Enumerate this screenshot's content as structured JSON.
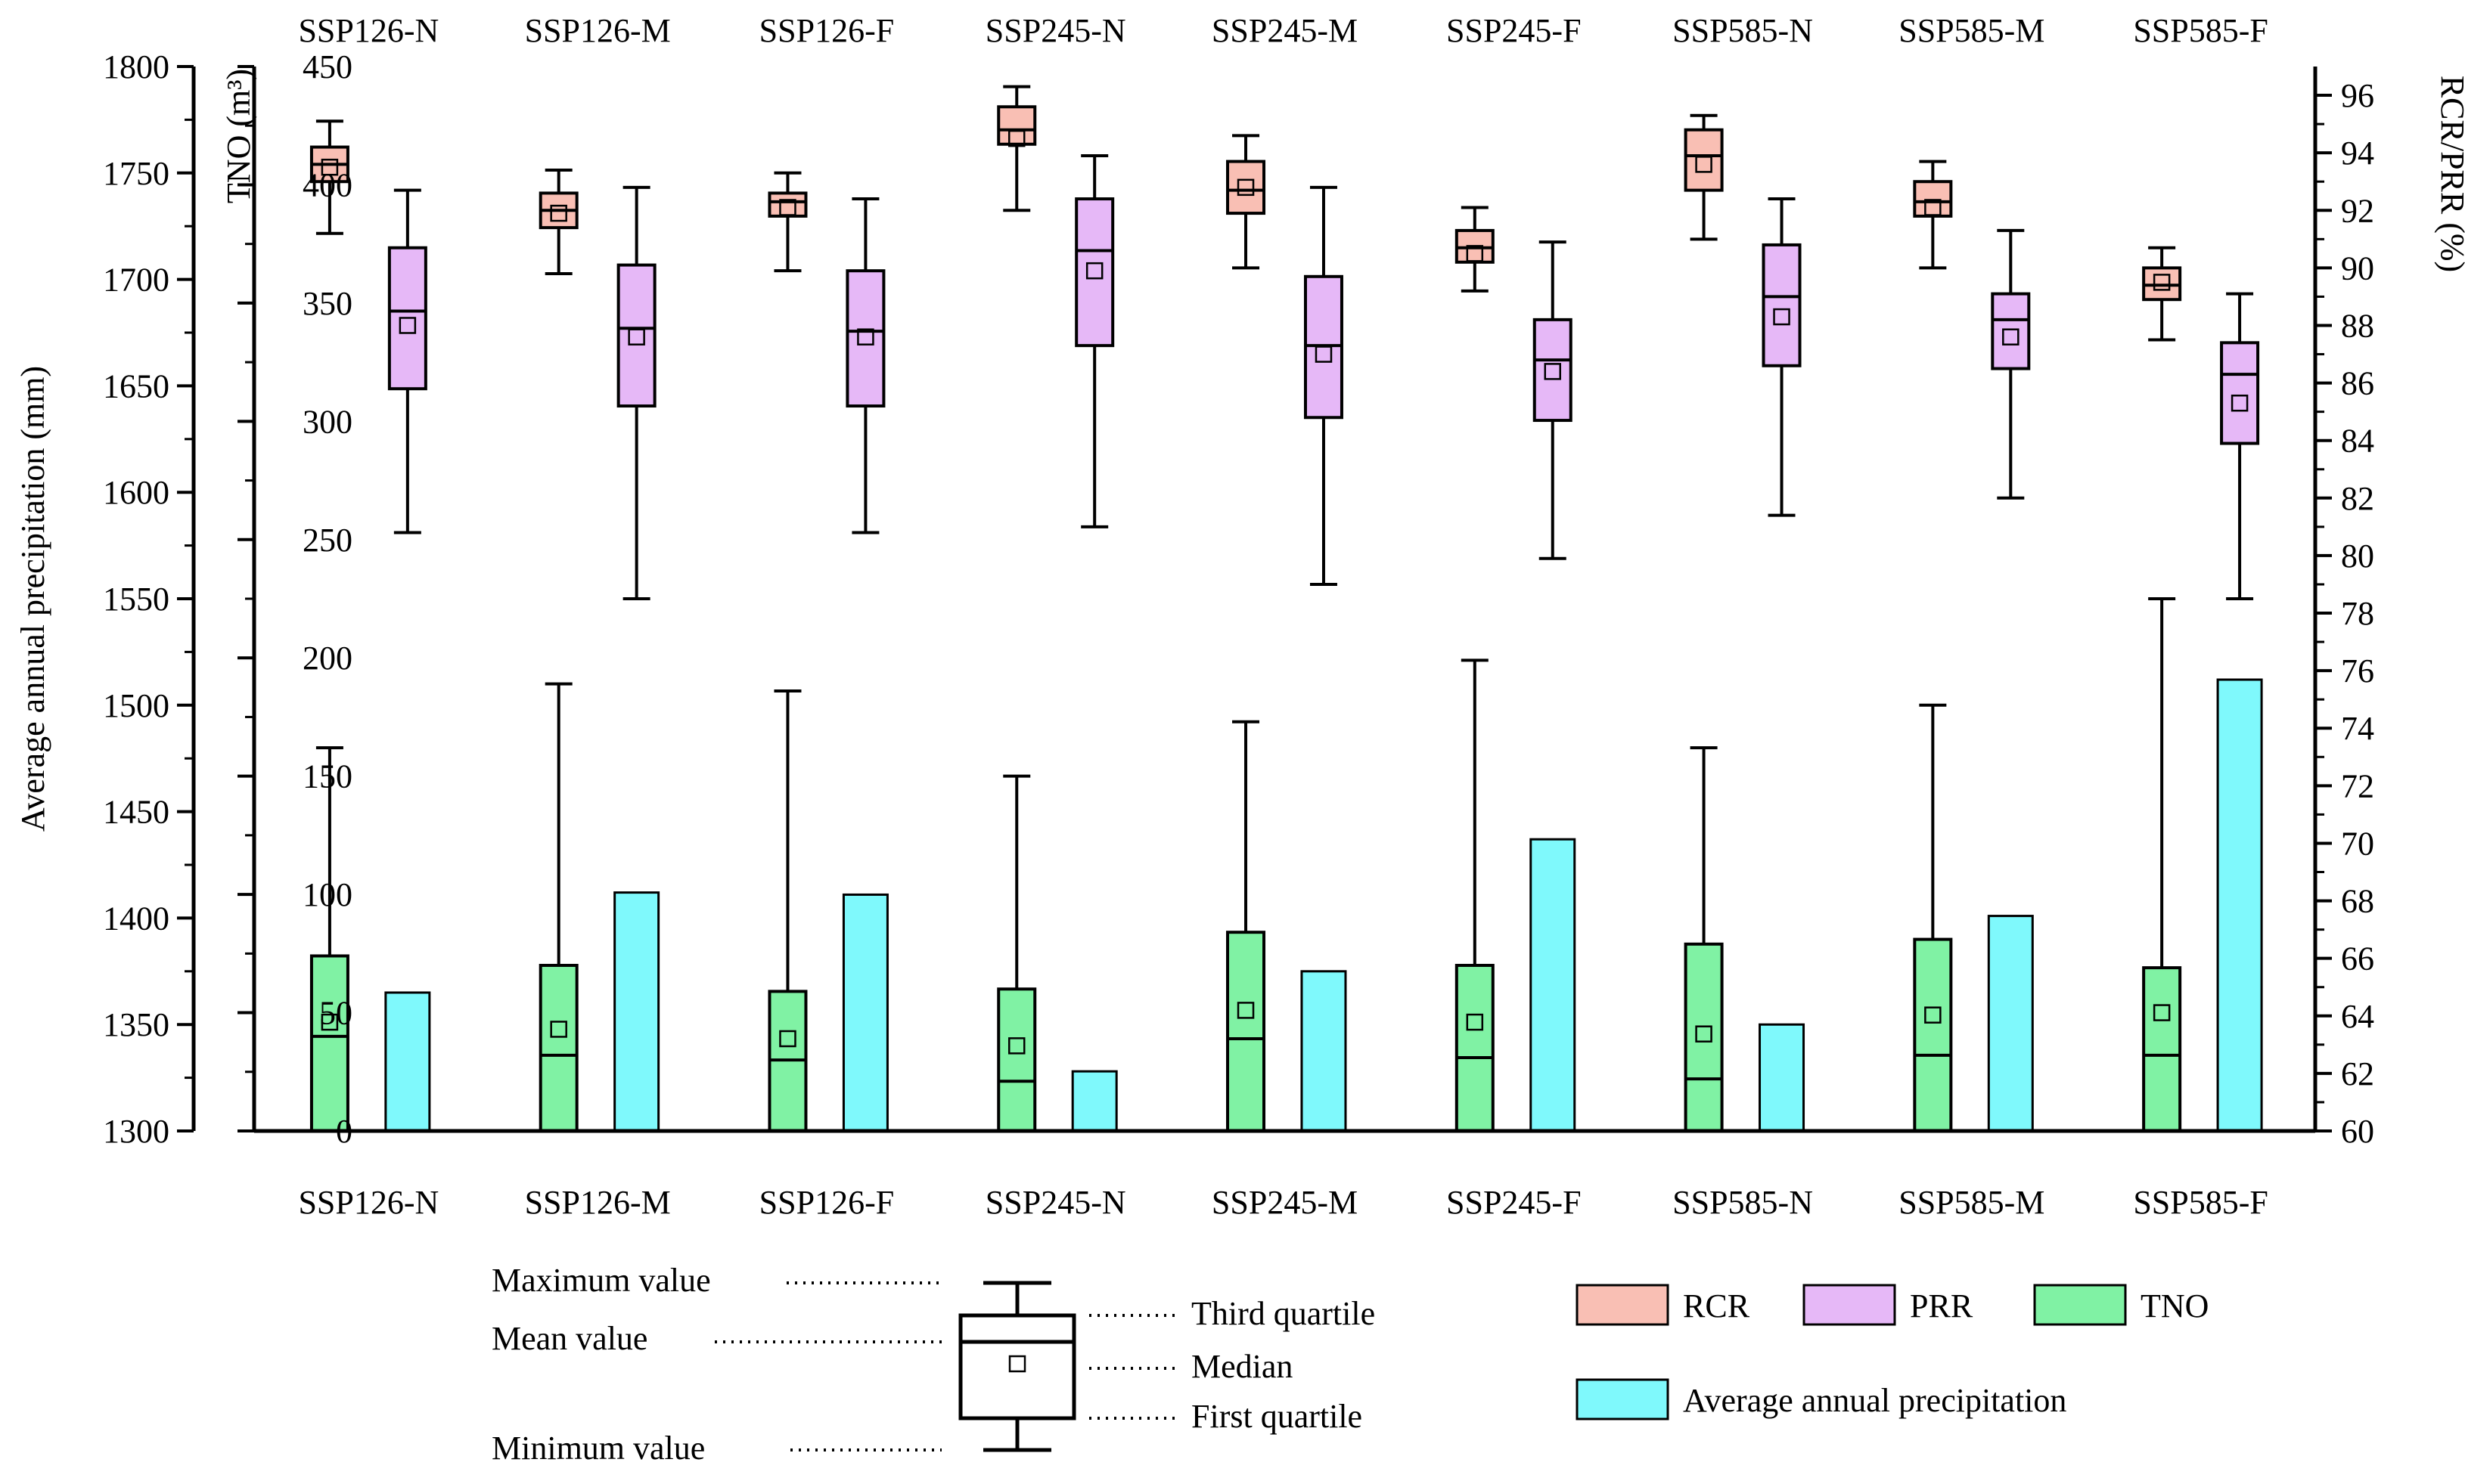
{
  "chart_data": {
    "type": "box",
    "categories": [
      "SSP126-N",
      "SSP126-M",
      "SSP126-F",
      "SSP245-N",
      "SSP245-M",
      "SSP245-F",
      "SSP585-N",
      "SSP585-M",
      "SSP585-F"
    ],
    "axes": {
      "precip": {
        "label": "Average annual precipitation (mm)",
        "min": 1300,
        "max": 1800,
        "ticks": [
          "1300",
          "1350",
          "1400",
          "1450",
          "1500",
          "1550",
          "1600",
          "1650",
          "1700",
          "1750",
          "1800"
        ]
      },
      "tno": {
        "label": "TNO (m³)",
        "min": 0,
        "max": 450,
        "ticks": [
          "0",
          "50",
          "100",
          "150",
          "200",
          "250",
          "300",
          "350",
          "400",
          "450"
        ]
      },
      "ratio": {
        "label": "RCR/PRR (%)",
        "min": 60,
        "max": 97,
        "ticks": [
          "60",
          "62",
          "64",
          "66",
          "68",
          "70",
          "72",
          "74",
          "76",
          "78",
          "80",
          "82",
          "84",
          "86",
          "88",
          "90",
          "92",
          "94",
          "96"
        ]
      }
    },
    "series": [
      {
        "name": "RCR",
        "kind": "box",
        "axis": "ratio",
        "color": "#f9bfb4",
        "stats": [
          {
            "min": 91.2,
            "q1": 93.0,
            "median": 93.6,
            "q3": 94.2,
            "max": 95.1,
            "mean": 93.5
          },
          {
            "min": 89.8,
            "q1": 91.4,
            "median": 92.0,
            "q3": 92.6,
            "max": 93.4,
            "mean": 91.9
          },
          {
            "min": 89.9,
            "q1": 91.8,
            "median": 92.3,
            "q3": 92.6,
            "max": 93.3,
            "mean": 92.1
          },
          {
            "min": 92.0,
            "q1": 94.3,
            "median": 94.8,
            "q3": 95.6,
            "max": 96.3,
            "mean": 94.5
          },
          {
            "min": 90.0,
            "q1": 91.9,
            "median": 92.7,
            "q3": 93.7,
            "max": 94.6,
            "mean": 92.8
          },
          {
            "min": 89.2,
            "q1": 90.2,
            "median": 90.7,
            "q3": 91.3,
            "max": 92.1,
            "mean": 90.5
          },
          {
            "min": 91.0,
            "q1": 92.7,
            "median": 93.9,
            "q3": 94.8,
            "max": 95.3,
            "mean": 93.6
          },
          {
            "min": 90.0,
            "q1": 91.8,
            "median": 92.3,
            "q3": 93.0,
            "max": 93.7,
            "mean": 92.1
          },
          {
            "min": 87.5,
            "q1": 88.9,
            "median": 89.4,
            "q3": 90.0,
            "max": 90.7,
            "mean": 89.5
          }
        ]
      },
      {
        "name": "PRR",
        "kind": "box",
        "axis": "ratio",
        "color": "#e6b8f7",
        "stats": [
          {
            "min": 80.8,
            "q1": 85.8,
            "median": 88.5,
            "q3": 90.7,
            "max": 92.7,
            "mean": 88.0
          },
          {
            "min": 78.5,
            "q1": 85.2,
            "median": 87.9,
            "q3": 90.1,
            "max": 92.8,
            "mean": 87.6
          },
          {
            "min": 80.8,
            "q1": 85.2,
            "median": 87.8,
            "q3": 89.9,
            "max": 92.4,
            "mean": 87.6
          },
          {
            "min": 81.0,
            "q1": 87.3,
            "median": 90.6,
            "q3": 92.4,
            "max": 93.9,
            "mean": 89.9
          },
          {
            "min": 79.0,
            "q1": 84.8,
            "median": 87.3,
            "q3": 89.7,
            "max": 92.8,
            "mean": 87.0
          },
          {
            "min": 79.9,
            "q1": 84.7,
            "median": 86.8,
            "q3": 88.2,
            "max": 90.9,
            "mean": 86.4
          },
          {
            "min": 81.4,
            "q1": 86.6,
            "median": 89.0,
            "q3": 90.8,
            "max": 92.4,
            "mean": 88.3
          },
          {
            "min": 82.0,
            "q1": 86.5,
            "median": 88.2,
            "q3": 89.1,
            "max": 91.3,
            "mean": 87.6
          },
          {
            "min": 78.5,
            "q1": 83.9,
            "median": 86.3,
            "q3": 87.4,
            "max": 89.1,
            "mean": 85.3
          }
        ]
      },
      {
        "name": "TNO",
        "kind": "box",
        "axis": "tno",
        "color": "#80f2a4",
        "stats": [
          {
            "min": 0,
            "q1": 0,
            "median": 40,
            "q3": 74,
            "max": 162,
            "mean": 46
          },
          {
            "min": 0,
            "q1": 0,
            "median": 32,
            "q3": 70,
            "max": 189,
            "mean": 43
          },
          {
            "min": 0,
            "q1": 0,
            "median": 30,
            "q3": 59,
            "max": 186,
            "mean": 39
          },
          {
            "min": 0,
            "q1": 0,
            "median": 21,
            "q3": 60,
            "max": 150,
            "mean": 36
          },
          {
            "min": 0,
            "q1": 0,
            "median": 39,
            "q3": 84,
            "max": 173,
            "mean": 51
          },
          {
            "min": 0,
            "q1": 0,
            "median": 31,
            "q3": 70,
            "max": 199,
            "mean": 46
          },
          {
            "min": 0,
            "q1": 0,
            "median": 22,
            "q3": 79,
            "max": 162,
            "mean": 41
          },
          {
            "min": 0,
            "q1": 0,
            "median": 32,
            "q3": 81,
            "max": 180,
            "mean": 49
          },
          {
            "min": 0,
            "q1": 0,
            "median": 32,
            "q3": 69,
            "max": 225,
            "mean": 50
          }
        ]
      },
      {
        "name": "Average annual precipitation",
        "kind": "bar",
        "axis": "precip",
        "color": "#7ff9fc",
        "values": [
          1365,
          1412,
          1411,
          1328,
          1375,
          1437,
          1350,
          1401,
          1512
        ]
      }
    ]
  },
  "legend_items": [
    "RCR",
    "PRR",
    "TNO",
    "Average annual precipitation"
  ],
  "box_guide": {
    "max_label": "Maximum value",
    "mean_label": "Mean value",
    "min_label": "Minimum value",
    "q3_label": "Third quartile",
    "median_label": "Median",
    "q1_label": "First quartile"
  }
}
